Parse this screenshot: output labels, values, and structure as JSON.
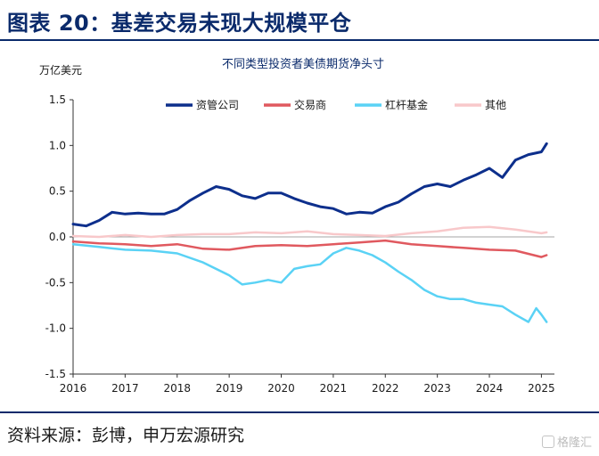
{
  "figure": {
    "title": "图表 20：基差交易未现大规模平仓",
    "source": "资料来源：彭博，申万宏源研究",
    "watermark": "格隆汇"
  },
  "chart_data": {
    "type": "line",
    "title": "不同类型投资者美债期货净头寸",
    "ylabel": "万亿美元",
    "xlabel": "",
    "ylim": [
      -1.5,
      1.5
    ],
    "xlim": [
      2016,
      2025.25
    ],
    "yticks": [
      1.5,
      1.0,
      0.5,
      0.0,
      -0.5,
      -1.0,
      -1.5
    ],
    "ytick_labels": [
      "1.5",
      "1.0",
      "0.5",
      "0.0",
      "-0.5",
      "-1.0",
      "-1.5"
    ],
    "xticks": [
      2016,
      2017,
      2018,
      2019,
      2020,
      2021,
      2022,
      2023,
      2024,
      2025
    ],
    "xtick_labels": [
      "2016",
      "2017",
      "2018",
      "2019",
      "2020",
      "2021",
      "2022",
      "2023",
      "2024",
      "2025"
    ],
    "legend_position": "top",
    "grid": false,
    "series": [
      {
        "name": "资管公司",
        "color": "#0d2f8c",
        "x": [
          2016.0,
          2016.25,
          2016.5,
          2016.75,
          2017.0,
          2017.25,
          2017.5,
          2017.75,
          2018.0,
          2018.25,
          2018.5,
          2018.75,
          2019.0,
          2019.25,
          2019.5,
          2019.75,
          2020.0,
          2020.25,
          2020.5,
          2020.75,
          2021.0,
          2021.25,
          2021.5,
          2021.75,
          2022.0,
          2022.25,
          2022.5,
          2022.75,
          2023.0,
          2023.25,
          2023.5,
          2023.75,
          2024.0,
          2024.25,
          2024.5,
          2024.75,
          2025.0,
          2025.1
        ],
        "values": [
          0.14,
          0.12,
          0.18,
          0.27,
          0.25,
          0.26,
          0.25,
          0.25,
          0.3,
          0.4,
          0.48,
          0.55,
          0.52,
          0.45,
          0.42,
          0.48,
          0.48,
          0.42,
          0.37,
          0.33,
          0.31,
          0.25,
          0.27,
          0.26,
          0.33,
          0.38,
          0.47,
          0.55,
          0.58,
          0.55,
          0.62,
          0.68,
          0.75,
          0.65,
          0.84,
          0.9,
          0.93,
          1.02
        ]
      },
      {
        "name": "交易商",
        "color": "#e0595f",
        "x": [
          2016.0,
          2016.5,
          2017.0,
          2017.5,
          2018.0,
          2018.5,
          2019.0,
          2019.5,
          2020.0,
          2020.5,
          2021.0,
          2021.5,
          2022.0,
          2022.5,
          2023.0,
          2023.5,
          2024.0,
          2024.5,
          2025.0,
          2025.1
        ],
        "values": [
          -0.05,
          -0.07,
          -0.08,
          -0.1,
          -0.08,
          -0.13,
          -0.14,
          -0.1,
          -0.09,
          -0.1,
          -0.08,
          -0.06,
          -0.04,
          -0.08,
          -0.1,
          -0.12,
          -0.14,
          -0.15,
          -0.22,
          -0.2
        ]
      },
      {
        "name": "杠杆基金",
        "color": "#5ad2f5",
        "x": [
          2016.0,
          2016.5,
          2017.0,
          2017.5,
          2018.0,
          2018.5,
          2019.0,
          2019.25,
          2019.5,
          2019.75,
          2020.0,
          2020.25,
          2020.5,
          2020.75,
          2021.0,
          2021.25,
          2021.5,
          2021.75,
          2022.0,
          2022.25,
          2022.5,
          2022.75,
          2023.0,
          2023.25,
          2023.5,
          2023.75,
          2024.0,
          2024.25,
          2024.5,
          2024.75,
          2024.9,
          2025.0,
          2025.1
        ],
        "values": [
          -0.08,
          -0.11,
          -0.14,
          -0.15,
          -0.18,
          -0.28,
          -0.42,
          -0.52,
          -0.5,
          -0.47,
          -0.5,
          -0.35,
          -0.32,
          -0.3,
          -0.18,
          -0.12,
          -0.15,
          -0.2,
          -0.28,
          -0.38,
          -0.47,
          -0.58,
          -0.65,
          -0.68,
          -0.68,
          -0.72,
          -0.74,
          -0.76,
          -0.85,
          -0.93,
          -0.78,
          -0.85,
          -0.93
        ]
      },
      {
        "name": "其他",
        "color": "#f8c8ca",
        "x": [
          2016.0,
          2016.5,
          2017.0,
          2017.5,
          2018.0,
          2018.5,
          2019.0,
          2019.5,
          2020.0,
          2020.5,
          2021.0,
          2021.5,
          2022.0,
          2022.5,
          2023.0,
          2023.5,
          2024.0,
          2024.5,
          2025.0,
          2025.1
        ],
        "values": [
          0.01,
          0.0,
          0.02,
          0.0,
          0.02,
          0.03,
          0.03,
          0.05,
          0.04,
          0.06,
          0.03,
          0.02,
          0.01,
          0.04,
          0.06,
          0.1,
          0.11,
          0.08,
          0.04,
          0.05
        ]
      }
    ]
  }
}
